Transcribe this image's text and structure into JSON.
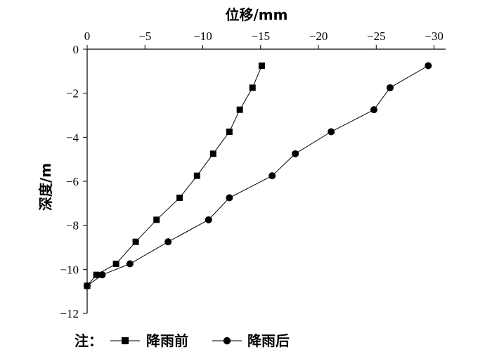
{
  "chart_data": {
    "type": "line",
    "xlabel": "位移/mm",
    "ylabel": "深度/m",
    "xlim": [
      0,
      -31
    ],
    "ylim": [
      0,
      -12
    ],
    "x_ticks": [
      0,
      -5,
      -10,
      -15,
      -20,
      -25,
      -30
    ],
    "x_tick_labels": [
      "0",
      "−5",
      "−10",
      "−15",
      "−20",
      "−25",
      "−30"
    ],
    "y_ticks": [
      0,
      -2,
      -4,
      -6,
      -8,
      -10,
      -12
    ],
    "y_tick_labels": [
      "0",
      "−2",
      "−4",
      "−6",
      "−8",
      "−10",
      "−12"
    ],
    "x_axis_position": "top",
    "grid": false,
    "legend_prefix": "注：",
    "legend_position": "bottom-left",
    "series": [
      {
        "name": "降雨前",
        "marker": "square",
        "color": "#000000",
        "points": [
          [
            -15.1,
            -0.75
          ],
          [
            -14.3,
            -1.75
          ],
          [
            -13.2,
            -2.75
          ],
          [
            -12.3,
            -3.75
          ],
          [
            -10.9,
            -4.75
          ],
          [
            -9.5,
            -5.75
          ],
          [
            -8.0,
            -6.75
          ],
          [
            -6.0,
            -7.75
          ],
          [
            -4.2,
            -8.75
          ],
          [
            -2.5,
            -9.75
          ],
          [
            -0.8,
            -10.25
          ],
          [
            0,
            -10.75
          ]
        ]
      },
      {
        "name": "降雨后",
        "marker": "circle",
        "color": "#000000",
        "points": [
          [
            -29.5,
            -0.75
          ],
          [
            -26.2,
            -1.75
          ],
          [
            -24.8,
            -2.75
          ],
          [
            -21.1,
            -3.75
          ],
          [
            -18.0,
            -4.75
          ],
          [
            -16.0,
            -5.75
          ],
          [
            -12.3,
            -6.75
          ],
          [
            -10.5,
            -7.75
          ],
          [
            -7.0,
            -8.75
          ],
          [
            -3.7,
            -9.75
          ],
          [
            -1.3,
            -10.25
          ],
          [
            0,
            -10.75
          ]
        ]
      }
    ]
  }
}
